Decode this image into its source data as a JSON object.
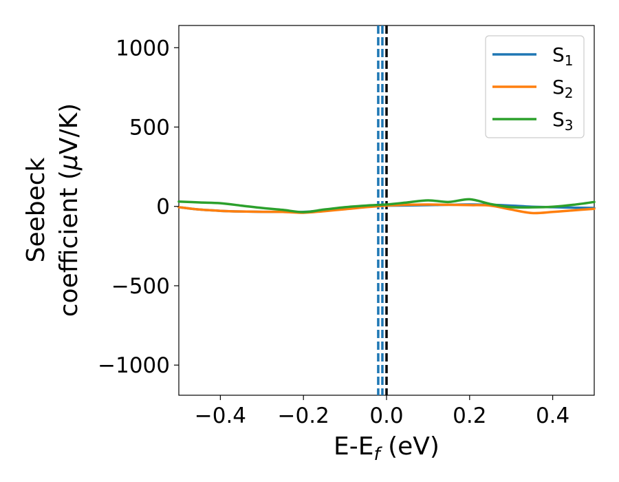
{
  "chart_data": {
    "type": "line",
    "title": "",
    "xlabel": "E-E",
    "xlabel_sub": "f",
    "xlabel_unit": " (eV)",
    "ylabel_line1": "Seebeck",
    "ylabel_line2": "coefficient  (",
    "ylabel_mu": "μ",
    "ylabel_unit": "V/K)",
    "xlim": [
      -0.5,
      0.5
    ],
    "ylim": [
      -1190,
      1140
    ],
    "xticks": [
      -0.4,
      -0.2,
      0.0,
      0.2,
      0.4
    ],
    "xtick_labels": [
      "−0.4",
      "−0.2",
      "0.0",
      "0.2",
      "0.4"
    ],
    "yticks": [
      1000,
      500,
      0,
      -500,
      -1000
    ],
    "ytick_labels": [
      "1000",
      "500",
      "0",
      "−500",
      "−1000"
    ],
    "grid": false,
    "legend_position": "top-right",
    "vertical_lines": [
      {
        "x": -0.02,
        "style": "dashed",
        "color": "#1f77b4"
      },
      {
        "x": -0.01,
        "style": "dashed",
        "color": "#1f77b4"
      },
      {
        "x": 0.0,
        "style": "dashed",
        "color": "#000000"
      }
    ],
    "series": [
      {
        "name": "S",
        "sub": "1",
        "color": "#1f77b4",
        "x": [
          -0.5,
          -0.45,
          -0.4,
          -0.35,
          -0.3,
          -0.25,
          -0.2,
          -0.15,
          -0.1,
          -0.05,
          0.0,
          0.05,
          0.1,
          0.15,
          0.2,
          0.25,
          0.3,
          0.35,
          0.4,
          0.45,
          0.5
        ],
        "values": [
          -5,
          -20,
          -28,
          -32,
          -34,
          -35,
          -35,
          -25,
          -12,
          0,
          5,
          6,
          8,
          10,
          12,
          10,
          5,
          -2,
          -5,
          -8,
          -10
        ]
      },
      {
        "name": "S",
        "sub": "2",
        "color": "#ff7f0e",
        "x": [
          -0.5,
          -0.45,
          -0.4,
          -0.35,
          -0.3,
          -0.25,
          -0.2,
          -0.15,
          -0.1,
          -0.05,
          0.0,
          0.05,
          0.1,
          0.15,
          0.2,
          0.25,
          0.3,
          0.35,
          0.4,
          0.45,
          0.5
        ],
        "values": [
          -5,
          -20,
          -28,
          -32,
          -34,
          -35,
          -40,
          -30,
          -18,
          -5,
          5,
          10,
          12,
          10,
          8,
          5,
          -20,
          -42,
          -35,
          -25,
          -15
        ]
      },
      {
        "name": "S",
        "sub": "3",
        "color": "#2ca02c",
        "x": [
          -0.5,
          -0.45,
          -0.4,
          -0.35,
          -0.3,
          -0.25,
          -0.2,
          -0.15,
          -0.1,
          -0.05,
          0.0,
          0.05,
          0.1,
          0.15,
          0.2,
          0.25,
          0.3,
          0.35,
          0.4,
          0.45,
          0.5
        ],
        "values": [
          30,
          25,
          20,
          5,
          -10,
          -22,
          -36,
          -20,
          -5,
          5,
          12,
          25,
          38,
          28,
          45,
          15,
          -5,
          -6,
          -2,
          10,
          28
        ]
      }
    ]
  }
}
